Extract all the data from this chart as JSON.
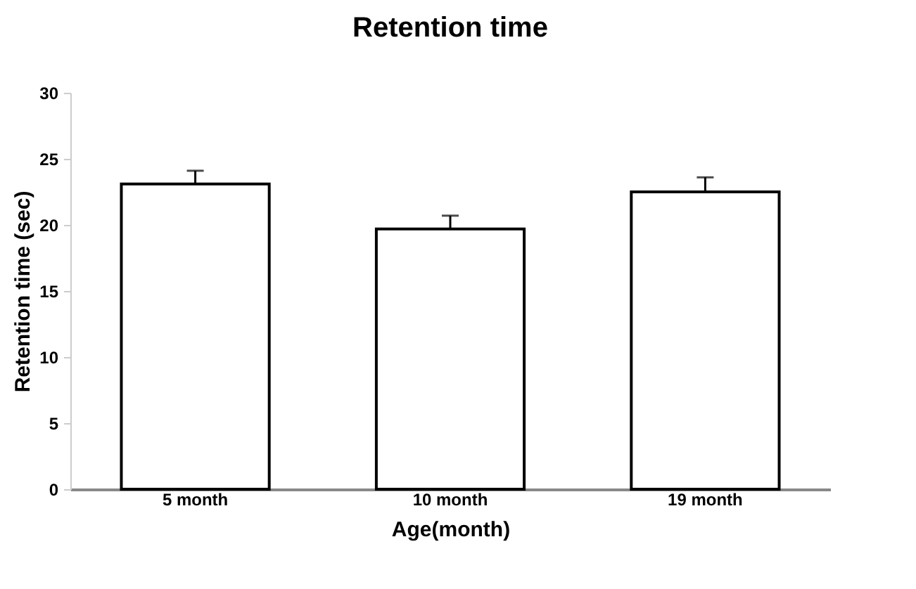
{
  "chart_data": {
    "type": "bar",
    "title": "Retention time",
    "xlabel": "Age(month)",
    "ylabel": "Retention time (sec)",
    "categories": [
      "5 month",
      "10 month",
      "19 month"
    ],
    "values": [
      23.1,
      19.7,
      22.5
    ],
    "errors": [
      1.0,
      1.0,
      1.1
    ],
    "color": "#ffffff",
    "ylim": [
      0,
      30
    ],
    "yticks": [
      0,
      5,
      10,
      15,
      20,
      25,
      30
    ],
    "grid": false
  }
}
